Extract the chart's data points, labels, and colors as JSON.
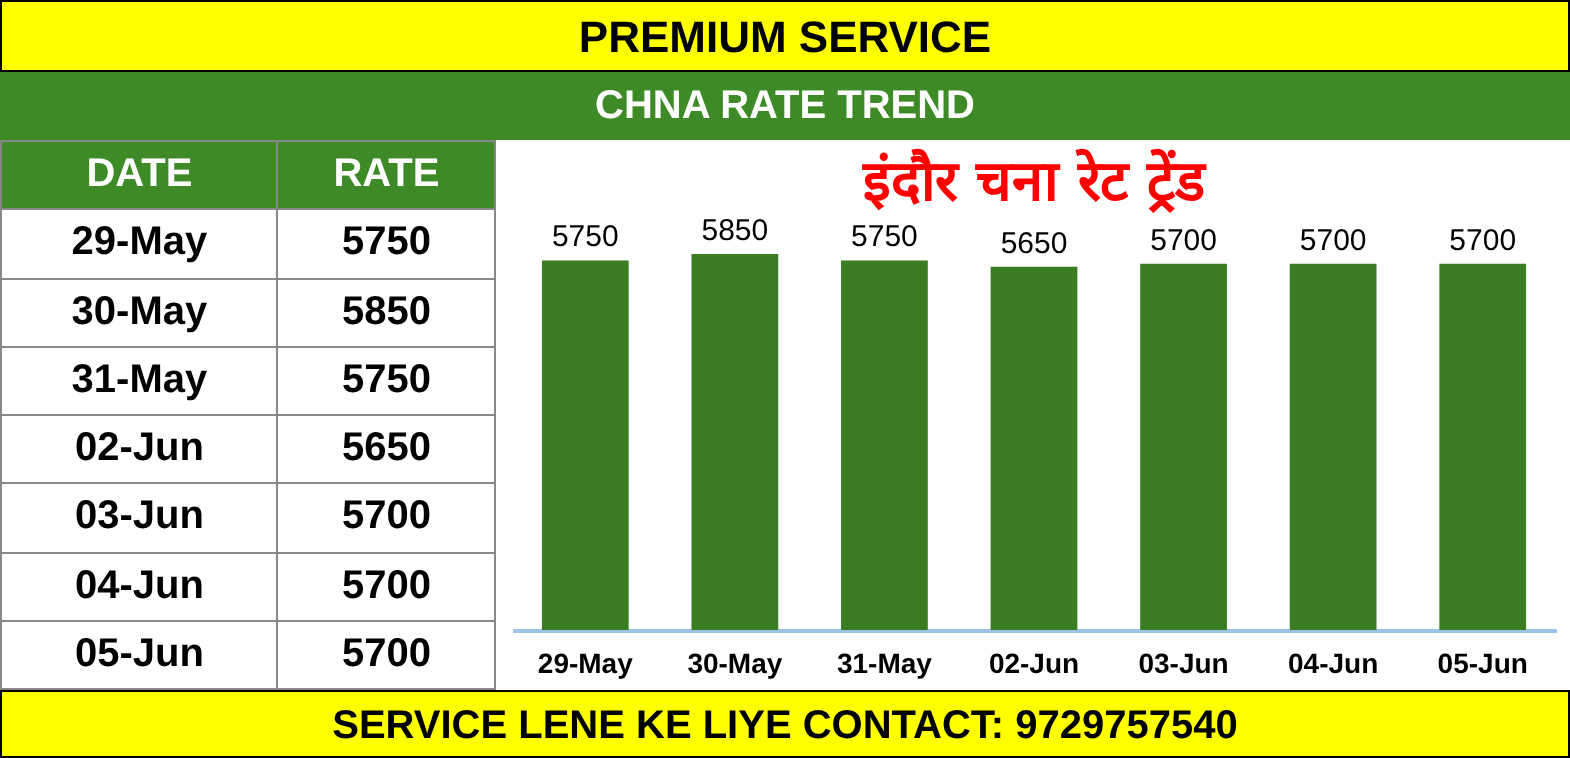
{
  "chart_data": {
    "type": "bar",
    "title": "इंदौर चना रेट ट्रेंड",
    "subtitle": "CHNA RATE TREND",
    "annotations": [
      "PREMIUM SERVICE",
      "DATE",
      "RATE",
      "SERVICE LENE KE LIYE CONTACT: 9729757540"
    ],
    "categories": [
      "29-May",
      "30-May",
      "31-May",
      "02-Jun",
      "03-Jun",
      "04-Jun",
      "05-Jun"
    ],
    "values": [
      5750,
      5850,
      5750,
      5650,
      5700,
      5700,
      5700
    ],
    "value_labels": [
      "5750",
      "5850",
      "5750",
      "5650",
      "5700",
      "5700",
      "5700"
    ],
    "color": "#3a7d23",
    "tick_labels": "x"
  }
}
